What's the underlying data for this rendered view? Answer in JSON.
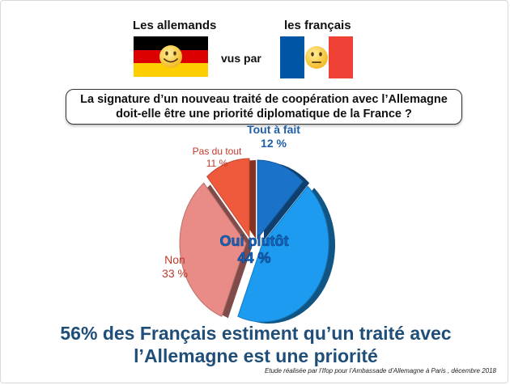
{
  "header": {
    "left_label": "Les allemands",
    "middle_label": "vus par",
    "right_label": "les français"
  },
  "question": {
    "line1": "La signature d’un nouveau traité de coopération avec l’Allemagne",
    "line2": "doit-elle être une priorité diplomatique de la France ?"
  },
  "chart_data": {
    "type": "pie",
    "title": "",
    "slices": [
      {
        "label": "Tout à fait",
        "value": 12,
        "value_label": "12 %",
        "color": "#1a73c9"
      },
      {
        "label": "Oui plutôt",
        "value": 44,
        "value_label": "44 %",
        "color": "#1d9bf0"
      },
      {
        "label": "Non",
        "value": 33,
        "value_label": "33 %",
        "color": "#e98b86"
      },
      {
        "label": "Pas du tout",
        "value": 11,
        "value_label": "11 %",
        "color": "#f05a3c"
      }
    ]
  },
  "conclusion": {
    "line1": "56% des Français estiment qu’un traité avec",
    "line2": "l’Allemagne est une priorité"
  },
  "source": "Etude réalisée par l’Ifop pour l’Ambassade d’Allemagne à Paris , décembre 2018",
  "colors": {
    "conclusion": "#1f4e79",
    "label_blue": "#1f5fa8",
    "label_red": "#c0392b",
    "flag_de": [
      "#000000",
      "#dd0000",
      "#ffce00"
    ],
    "flag_fr": [
      "#0055a4",
      "#ffffff",
      "#ef4135"
    ]
  },
  "icons": [
    "smiley-icon",
    "neutral-face-icon"
  ]
}
